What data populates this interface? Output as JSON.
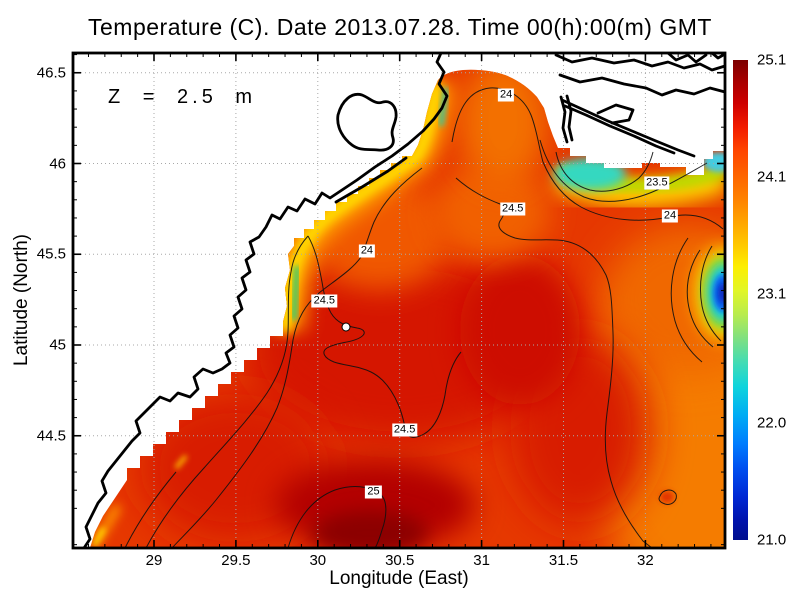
{
  "title": "Temperature (C). Date 2013.07.28. Time 00(h):00(m) GMT",
  "annotation": "Z = 2.5 m",
  "chart_data": {
    "type": "heatmap",
    "subtype": "filled-contour-map",
    "title": "Temperature (C). Date 2013.07.28. Time 00(h):00(m) GMT",
    "annotation": "Z = 2.5 m",
    "xlabel": "Longitude (East)",
    "ylabel": "Latitude (North)",
    "x_ticks": [
      29,
      29.5,
      30,
      30.5,
      31,
      31.5,
      32
    ],
    "y_ticks": [
      46.5,
      46,
      45.5,
      45,
      44.5
    ],
    "x_range": [
      28.51,
      32.49
    ],
    "y_range": [
      43.88,
      46.61
    ],
    "grid": true,
    "grid_style": "gray-dotted",
    "colorbar": {
      "position": "right",
      "min": 21.0,
      "max": 25.1,
      "colormap": "jet",
      "ticks": [
        {
          "label": "25.1",
          "value": 25.1
        },
        {
          "label": "24.1",
          "value": 24.1
        },
        {
          "label": "23.1",
          "value": 23.1
        },
        {
          "label": "22.0",
          "value": 22.0
        },
        {
          "label": "21.0",
          "value": 21.0
        }
      ]
    },
    "contour_levels": [
      23.5,
      24,
      24.5,
      25
    ],
    "contour_labels": [
      {
        "value": "24",
        "lon": 31.15,
        "lat": 46.38
      },
      {
        "value": "23.5",
        "lon": 32.07,
        "lat": 45.89
      },
      {
        "value": "24.5",
        "lon": 31.19,
        "lat": 45.75
      },
      {
        "value": "24",
        "lon": 32.15,
        "lat": 45.71
      },
      {
        "value": "24",
        "lon": 30.3,
        "lat": 45.52
      },
      {
        "value": "24.5",
        "lon": 30.04,
        "lat": 45.24
      },
      {
        "value": "24.5",
        "lon": 30.53,
        "lat": 44.53
      },
      {
        "value": "25",
        "lon": 30.34,
        "lat": 44.19
      }
    ],
    "station_marker": {
      "lon": 30.17,
      "lat": 45.1
    },
    "field_summary": "NW Black Sea surface temperature: warm 24.5-25+ C red/dark-red core over the south and center, orange ~24 C toward the east, cooler 21-23.5 C cyan/blue patches along the NE coast and at the eastern edge; white = land / no data.",
    "colors": {
      "sea_base": "#e63800",
      "warm_core": "#8c0000",
      "cool_patch": "#0a2cc0",
      "land": "#ffffff",
      "coastline": "#000000",
      "gridline": "#a8a8a8"
    }
  }
}
